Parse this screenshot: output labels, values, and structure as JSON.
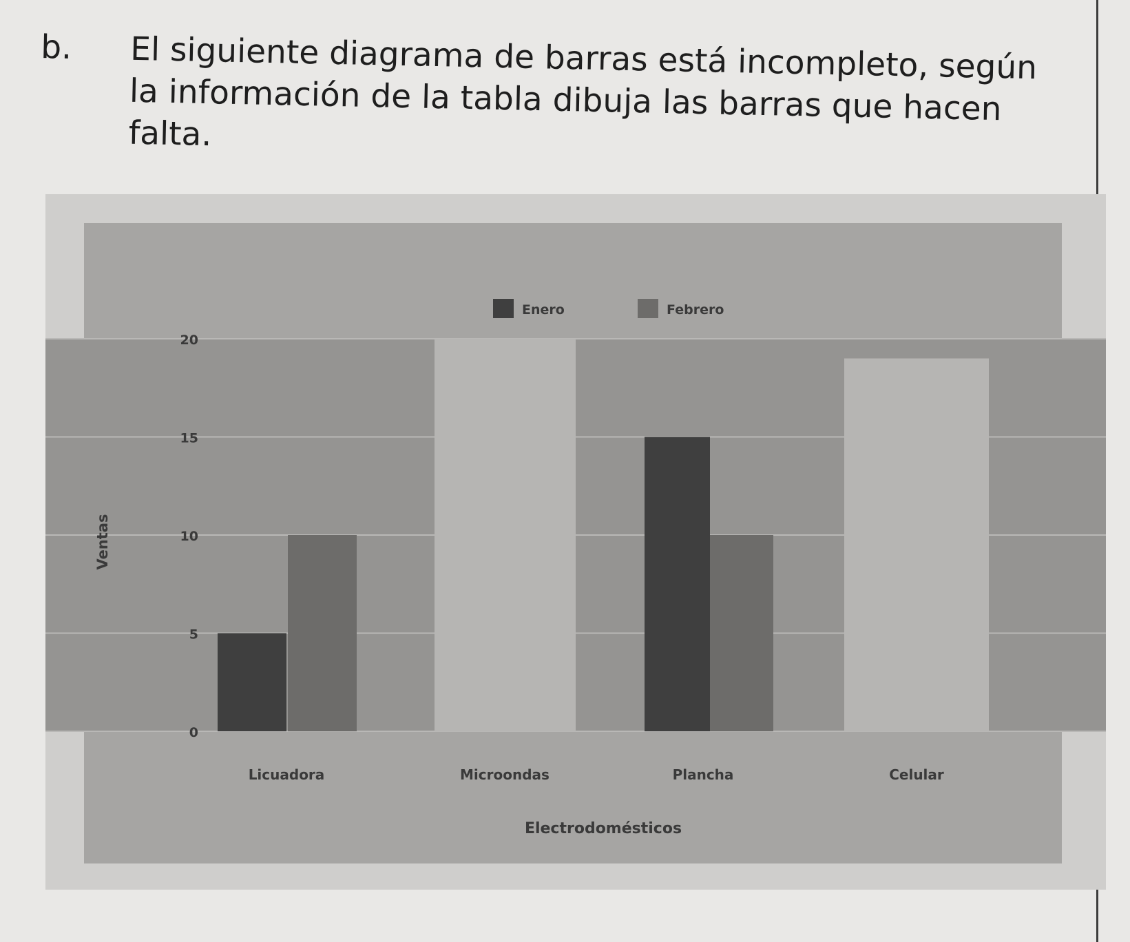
{
  "exercise": {
    "label": "b.",
    "text": "El siguiente diagrama de barras está incompleto, según la información de la tabla dibuja las barras que hacen falta."
  },
  "chart_data": {
    "type": "bar",
    "title": "",
    "xlabel": "Electrodomésticos",
    "ylabel": "Ventas",
    "categories": [
      "Licuadora",
      "Microondas",
      "Plancha",
      "Celular"
    ],
    "series": [
      {
        "name": "Enero",
        "values": [
          5,
          null,
          15,
          null
        ]
      },
      {
        "name": "Febrero",
        "values": [
          10,
          null,
          10,
          null
        ]
      }
    ],
    "placeholder_blocks": [
      {
        "category": "Microondas",
        "top_value": 20
      },
      {
        "category": "Celular",
        "top_value": 19
      }
    ],
    "ylim": [
      0,
      20
    ],
    "yticks": [
      0,
      5,
      10,
      15,
      20
    ],
    "grid": true,
    "legend": "top-center",
    "colors": {
      "Enero": "#3f3f3f",
      "Febrero": "#6d6c6a",
      "placeholder": "#b6b5b3",
      "plot_bg": "#959492",
      "panel_bg": "#cfcecc"
    }
  }
}
